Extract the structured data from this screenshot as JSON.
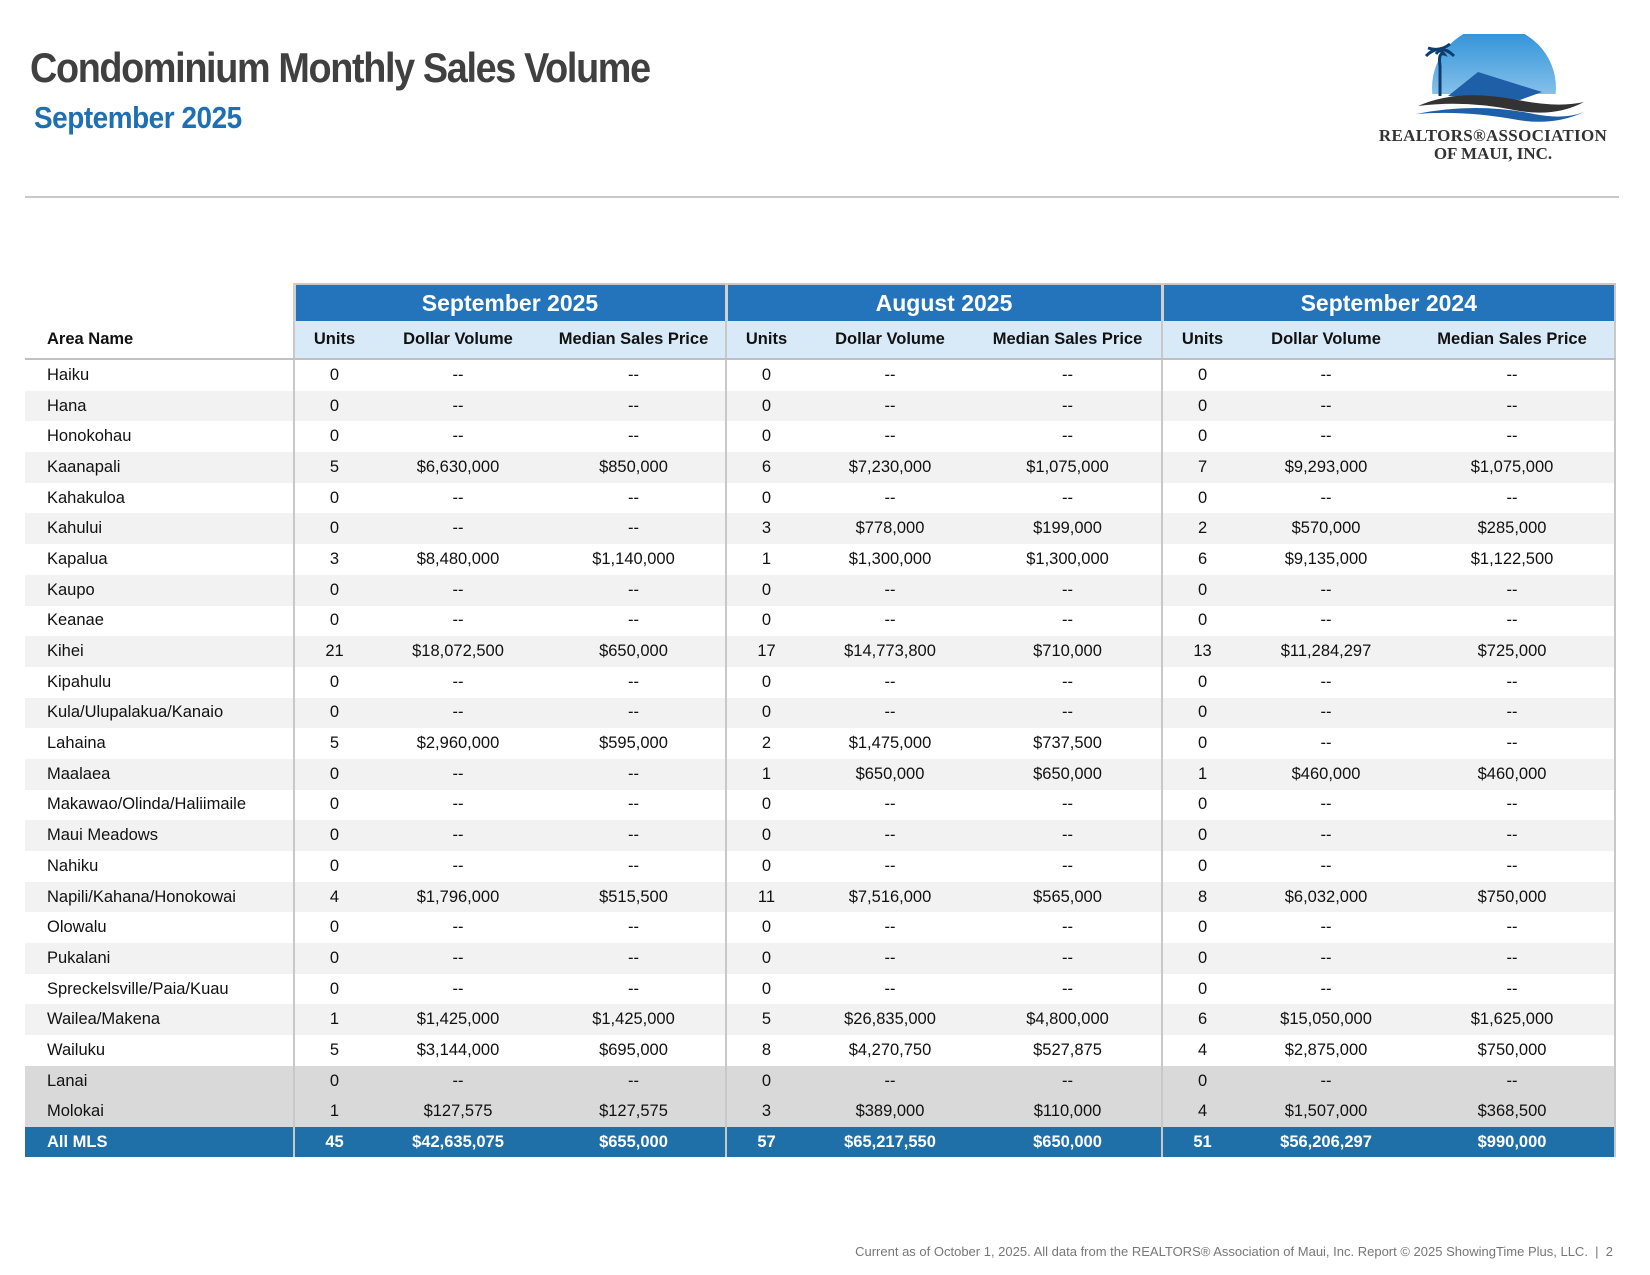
{
  "header": {
    "title": "Condominium Monthly Sales Volume",
    "subtitle": "September 2025"
  },
  "logo": {
    "line1": "REALTORS®ASSOCIATION",
    "line2": "OF MAUI, INC."
  },
  "table": {
    "groups": [
      "September 2025",
      "August 2025",
      "September 2024"
    ],
    "area_header": "Area Name",
    "column_headers": [
      "Units",
      "Dollar Volume",
      "Median Sales Price"
    ],
    "rows": [
      [
        "Haiku",
        "0",
        "--",
        "--",
        "0",
        "--",
        "--",
        "0",
        "--",
        "--"
      ],
      [
        "Hana",
        "0",
        "--",
        "--",
        "0",
        "--",
        "--",
        "0",
        "--",
        "--"
      ],
      [
        "Honokohau",
        "0",
        "--",
        "--",
        "0",
        "--",
        "--",
        "0",
        "--",
        "--"
      ],
      [
        "Kaanapali",
        "5",
        "$6,630,000",
        "$850,000",
        "6",
        "$7,230,000",
        "$1,075,000",
        "7",
        "$9,293,000",
        "$1,075,000"
      ],
      [
        "Kahakuloa",
        "0",
        "--",
        "--",
        "0",
        "--",
        "--",
        "0",
        "--",
        "--"
      ],
      [
        "Kahului",
        "0",
        "--",
        "--",
        "3",
        "$778,000",
        "$199,000",
        "2",
        "$570,000",
        "$285,000"
      ],
      [
        "Kapalua",
        "3",
        "$8,480,000",
        "$1,140,000",
        "1",
        "$1,300,000",
        "$1,300,000",
        "6",
        "$9,135,000",
        "$1,122,500"
      ],
      [
        "Kaupo",
        "0",
        "--",
        "--",
        "0",
        "--",
        "--",
        "0",
        "--",
        "--"
      ],
      [
        "Keanae",
        "0",
        "--",
        "--",
        "0",
        "--",
        "--",
        "0",
        "--",
        "--"
      ],
      [
        "Kihei",
        "21",
        "$18,072,500",
        "$650,000",
        "17",
        "$14,773,800",
        "$710,000",
        "13",
        "$11,284,297",
        "$725,000"
      ],
      [
        "Kipahulu",
        "0",
        "--",
        "--",
        "0",
        "--",
        "--",
        "0",
        "--",
        "--"
      ],
      [
        "Kula/Ulupalakua/Kanaio",
        "0",
        "--",
        "--",
        "0",
        "--",
        "--",
        "0",
        "--",
        "--"
      ],
      [
        "Lahaina",
        "5",
        "$2,960,000",
        "$595,000",
        "2",
        "$1,475,000",
        "$737,500",
        "0",
        "--",
        "--"
      ],
      [
        "Maalaea",
        "0",
        "--",
        "--",
        "1",
        "$650,000",
        "$650,000",
        "1",
        "$460,000",
        "$460,000"
      ],
      [
        "Makawao/Olinda/Haliimaile",
        "0",
        "--",
        "--",
        "0",
        "--",
        "--",
        "0",
        "--",
        "--"
      ],
      [
        "Maui Meadows",
        "0",
        "--",
        "--",
        "0",
        "--",
        "--",
        "0",
        "--",
        "--"
      ],
      [
        "Nahiku",
        "0",
        "--",
        "--",
        "0",
        "--",
        "--",
        "0",
        "--",
        "--"
      ],
      [
        "Napili/Kahana/Honokowai",
        "4",
        "$1,796,000",
        "$515,500",
        "11",
        "$7,516,000",
        "$565,000",
        "8",
        "$6,032,000",
        "$750,000"
      ],
      [
        "Olowalu",
        "0",
        "--",
        "--",
        "0",
        "--",
        "--",
        "0",
        "--",
        "--"
      ],
      [
        "Pukalani",
        "0",
        "--",
        "--",
        "0",
        "--",
        "--",
        "0",
        "--",
        "--"
      ],
      [
        "Spreckelsville/Paia/Kuau",
        "0",
        "--",
        "--",
        "0",
        "--",
        "--",
        "0",
        "--",
        "--"
      ],
      [
        "Wailea/Makena",
        "1",
        "$1,425,000",
        "$1,425,000",
        "5",
        "$26,835,000",
        "$4,800,000",
        "6",
        "$15,050,000",
        "$1,625,000"
      ],
      [
        "Wailuku",
        "5",
        "$3,144,000",
        "$695,000",
        "8",
        "$4,270,750",
        "$527,875",
        "4",
        "$2,875,000",
        "$750,000"
      ],
      [
        "Lanai",
        "0",
        "--",
        "--",
        "0",
        "--",
        "--",
        "0",
        "--",
        "--"
      ],
      [
        "Molokai",
        "1",
        "$127,575",
        "$127,575",
        "3",
        "$389,000",
        "$110,000",
        "4",
        "$1,507,000",
        "$368,500"
      ]
    ],
    "total": [
      "All MLS",
      "45",
      "$42,635,075",
      "$655,000",
      "57",
      "$65,217,550",
      "$650,000",
      "51",
      "$56,206,297",
      "$990,000"
    ]
  },
  "footer": {
    "text": "Current as of October 1, 2025. All data from the REALTORS® Association of Maui, Inc. Report © 2025 ShowingTime Plus, LLC.  |  2"
  }
}
